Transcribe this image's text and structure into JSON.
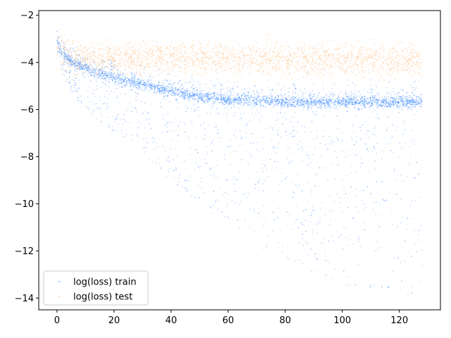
{
  "chart_data": {
    "type": "scatter",
    "title": "",
    "xlabel": "",
    "ylabel": "",
    "xlim": [
      -6.4,
      134.4
    ],
    "ylim": [
      -14.5,
      -1.8
    ],
    "xticks": [
      0,
      20,
      40,
      60,
      80,
      100,
      120
    ],
    "xtick_labels": [
      "0",
      "20",
      "40",
      "60",
      "80",
      "100",
      "120"
    ],
    "yticks": [
      -2,
      -4,
      -6,
      -8,
      -10,
      -12,
      -14
    ],
    "ytick_labels": [
      "−2",
      "−4",
      "−6",
      "−8",
      "−10",
      "−12",
      "−14"
    ],
    "grid": false,
    "legend_position": "lower-left",
    "series": [
      {
        "name": "log(loss) train",
        "color": "#0a6cff",
        "x_range": [
          0,
          128
        ],
        "curve_x": [
          0,
          2,
          5,
          10,
          20,
          30,
          40,
          50,
          60,
          80,
          100,
          128
        ],
        "curve_median": [
          -3.2,
          -3.7,
          -4.0,
          -4.3,
          -4.7,
          -5.0,
          -5.3,
          -5.5,
          -5.65,
          -5.75,
          -5.75,
          -5.75
        ],
        "lower_envelope": [
          -3.5,
          -4.5,
          -5.3,
          -6.0,
          -7.0,
          -8.0,
          -9.0,
          -10.0,
          -11.0,
          -12.5,
          -13.5,
          -14.0
        ]
      },
      {
        "name": "log(loss) test",
        "color": "#ff9a3c",
        "x_range": [
          0,
          128
        ],
        "curve_x": [
          0,
          5,
          10,
          20,
          40,
          60,
          80,
          100,
          128
        ],
        "curve_median": [
          -3.4,
          -3.7,
          -3.8,
          -3.8,
          -3.8,
          -3.85,
          -3.9,
          -3.9,
          -3.95
        ],
        "spread": 0.35
      }
    ]
  }
}
